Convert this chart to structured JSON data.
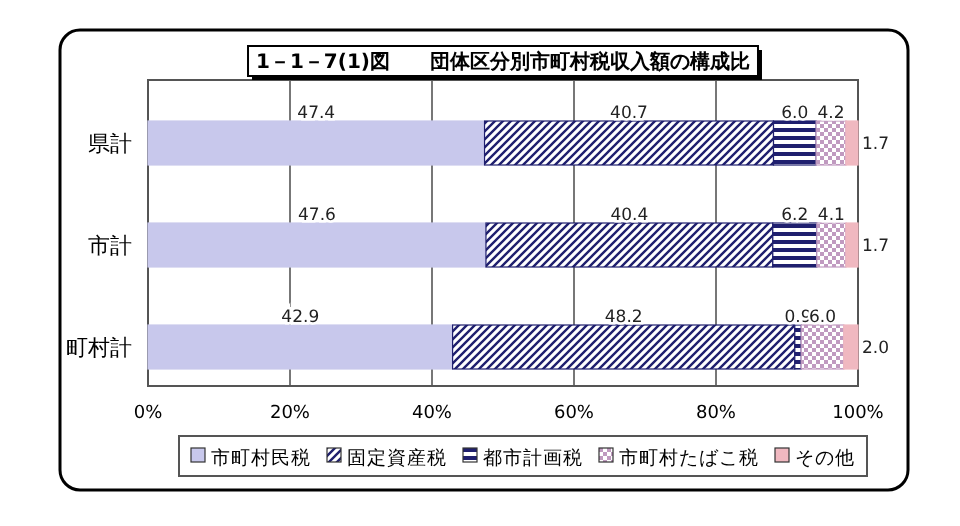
{
  "chart_data": {
    "type": "bar",
    "orientation": "horizontal",
    "stacked": true,
    "title": "1－1－7(1)図　　団体区分別市町村税収入額の構成比",
    "categories": [
      "県計",
      "市計",
      "町村計"
    ],
    "xlim": [
      0,
      100
    ],
    "xticks": [
      {
        "value": 0,
        "label": "0%"
      },
      {
        "value": 20,
        "label": "20%"
      },
      {
        "value": 40,
        "label": "40%"
      },
      {
        "value": 60,
        "label": "60%"
      },
      {
        "value": 80,
        "label": "80%"
      },
      {
        "value": 100,
        "label": "100%"
      }
    ],
    "grid": "x",
    "legend": "bottom",
    "series": [
      {
        "name": "市町村民税",
        "color": "#c8c8ec",
        "values": [
          47.4,
          47.6,
          42.9
        ],
        "value_labels": [
          "47.4",
          "47.6",
          "42.9"
        ]
      },
      {
        "name": "固定資産税",
        "color": "#1f1f6e",
        "values": [
          40.7,
          40.4,
          48.2
        ],
        "value_labels": [
          "40.7",
          "40.4",
          "48.2"
        ]
      },
      {
        "name": "都市計画税",
        "color": "#1f1f6e",
        "values": [
          6.0,
          6.2,
          0.9
        ],
        "value_labels": [
          "6.0",
          "6.2",
          "0.9"
        ]
      },
      {
        "name": "市町村たばこ税",
        "color": "#c09ac0",
        "values": [
          4.2,
          4.1,
          6.0
        ],
        "value_labels": [
          "4.2",
          "4.1",
          "6.0"
        ]
      },
      {
        "name": "その他",
        "color": "#f0b8c0",
        "values": [
          1.7,
          1.7,
          2.0
        ],
        "value_labels": [
          "1.7",
          "1.7",
          "2.0"
        ]
      }
    ]
  }
}
